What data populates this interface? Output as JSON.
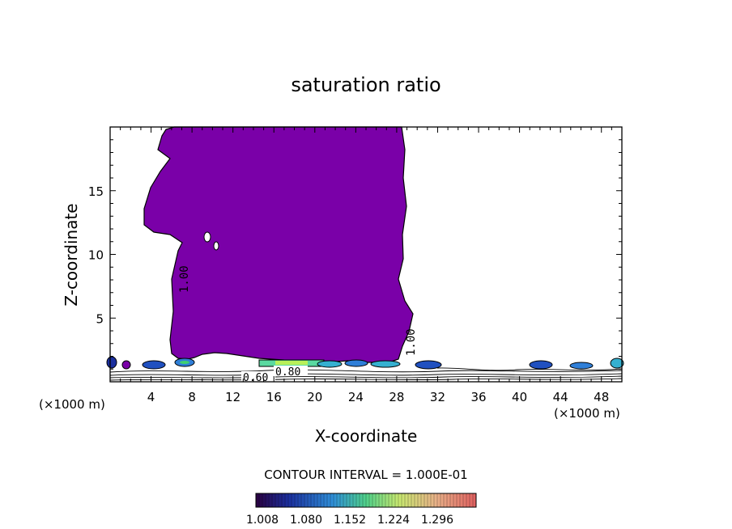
{
  "chart_data": {
    "type": "contour",
    "title": "saturation ratio",
    "xlabel": "X-coordinate",
    "ylabel": "Z-coordinate",
    "x_unit_label": "(×1000 m)",
    "y_unit_label": "(×1000 m)",
    "xlim": [
      0,
      50
    ],
    "ylim": [
      0,
      20
    ],
    "x_ticks": [
      4,
      8,
      12,
      16,
      20,
      24,
      28,
      32,
      36,
      40,
      44,
      48
    ],
    "y_ticks": [
      5,
      10,
      15
    ],
    "contour_labels": [
      "1.00",
      "1.00",
      "0.60",
      "0.80"
    ],
    "contour_interval_label": "CONTOUR INTERVAL = 1.000E-01",
    "colorbar_labels": [
      "1.008",
      "1.080",
      "1.152",
      "1.224",
      "1.296"
    ],
    "colorbar_range": [
      1.008,
      1.296
    ],
    "fill_color": "#7a00a8",
    "cloud_region": {
      "boundary_level": 1.0,
      "x_range": [
        2.7,
        29.5
      ],
      "z_range": [
        0.8,
        20
      ],
      "description": "supersaturated column (saturation ratio > 1.0)"
    }
  }
}
